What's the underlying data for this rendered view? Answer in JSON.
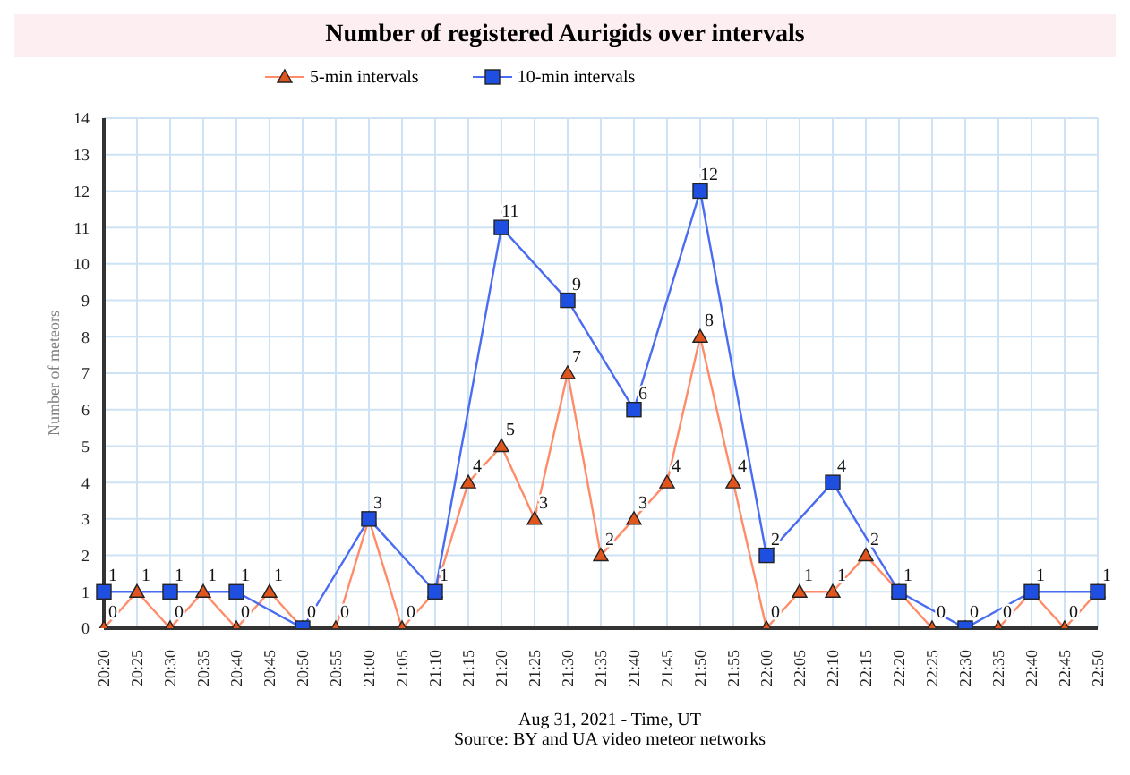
{
  "chart_data": {
    "type": "line",
    "title": "Number of registered Aurigids over intervals",
    "xlabel": "Aug 31, 2021 - Time, UT",
    "ylabel": "Number of meteors",
    "annotations": [
      "Source: BY and UA video meteor networks"
    ],
    "categories": [
      "20:20",
      "20:25",
      "20:30",
      "20:35",
      "20:40",
      "20:45",
      "20:50",
      "20:55",
      "21:00",
      "21:05",
      "21:10",
      "21:15",
      "21:20",
      "21:25",
      "21:30",
      "21:35",
      "21:40",
      "21:45",
      "21:50",
      "21:55",
      "22:00",
      "22:05",
      "22:10",
      "22:15",
      "22:20",
      "22:25",
      "22:30",
      "22:35",
      "22:40",
      "22:45",
      "22:50"
    ],
    "series": [
      {
        "name": "5-min intervals",
        "color": "#ff8c69",
        "marker": "triangle",
        "values": [
          0,
          1,
          0,
          1,
          0,
          1,
          0,
          0,
          3,
          0,
          1,
          4,
          5,
          3,
          7,
          2,
          3,
          4,
          8,
          4,
          0,
          1,
          1,
          2,
          1,
          0,
          0,
          0,
          1,
          0,
          1
        ],
        "value_labels": [
          "0",
          "1",
          "0",
          "1",
          "0",
          "1",
          null,
          "0",
          null,
          "0",
          null,
          "4",
          "5",
          "3",
          "7",
          "2",
          "3",
          "4",
          "8",
          "4",
          "0",
          "1",
          "1",
          "2",
          null,
          "0",
          null,
          "0",
          null,
          "0",
          null
        ]
      },
      {
        "name": "10-min intervals",
        "color": "#4a6cf0",
        "marker": "square",
        "values": [
          1,
          null,
          1,
          null,
          1,
          null,
          0,
          null,
          3,
          null,
          1,
          null,
          11,
          null,
          9,
          null,
          6,
          null,
          12,
          null,
          2,
          null,
          4,
          null,
          1,
          null,
          0,
          null,
          1,
          null,
          1
        ],
        "value_labels": [
          "1",
          null,
          "1",
          null,
          "1",
          null,
          "0",
          null,
          "3",
          null,
          "1",
          null,
          "11",
          null,
          "9",
          null,
          "6",
          null,
          "12",
          null,
          "2",
          null,
          "4",
          null,
          "1",
          null,
          "0",
          null,
          "1",
          null,
          "1"
        ]
      }
    ],
    "ylim": [
      0,
      14
    ],
    "yticks": [
      0,
      1,
      2,
      3,
      4,
      5,
      6,
      7,
      8,
      9,
      10,
      11,
      12,
      13,
      14
    ],
    "grid": true,
    "legend": "top left"
  }
}
